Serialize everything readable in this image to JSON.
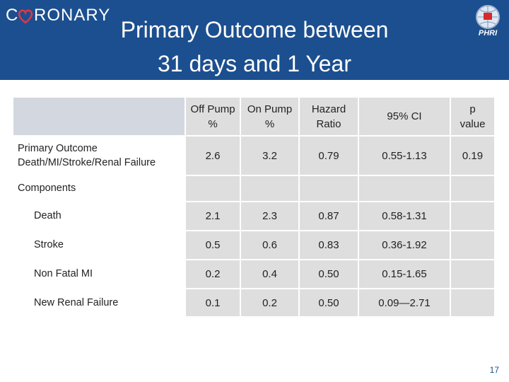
{
  "header": {
    "brand": {
      "prefix": "C",
      "suffix": "RONARY"
    },
    "title": {
      "line1": "Primary Outcome between",
      "line2": "31 days and 1 Year"
    },
    "logo": "PHRI"
  },
  "table": {
    "columns": [
      "",
      "Off Pump\n%",
      "On Pump\n%",
      "Hazard\nRatio",
      "95% CI",
      "p\nvalue"
    ],
    "rows": [
      [
        "Primary Outcome\nDeath/MI/Stroke/Renal Failure",
        "2.6",
        "3.2",
        "0.79",
        "0.55-1.13",
        "0.19"
      ],
      [
        "Components",
        "",
        "",
        "",
        "",
        ""
      ],
      [
        "Death",
        "2.1",
        "2.3",
        "0.87",
        "0.58-1.31",
        ""
      ],
      [
        "Stroke",
        "0.5",
        "0.6",
        "0.83",
        "0.36-1.92",
        ""
      ],
      [
        "Non Fatal MI",
        "0.2",
        "0.4",
        "0.50",
        "0.15-1.65",
        ""
      ],
      [
        "New Renal Failure",
        "0.1",
        "0.2",
        "0.50",
        "0.09—2.71",
        ""
      ]
    ]
  },
  "footer": {
    "page_number": "17"
  }
}
